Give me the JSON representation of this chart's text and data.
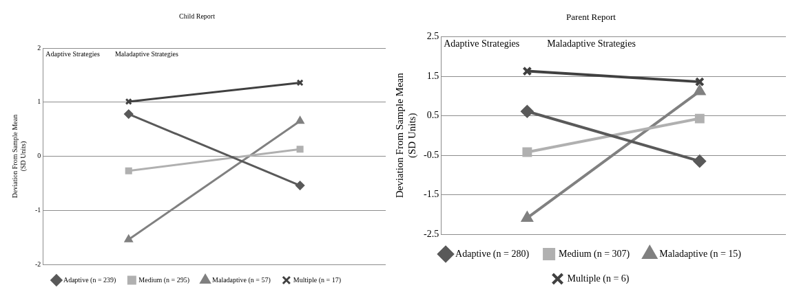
{
  "chart_data": [
    {
      "type": "line",
      "title": "Child Report",
      "ylabel": "Deviation From Sample Mean\n(SD Units)",
      "categories": [
        null,
        null
      ],
      "ylim": [
        -2,
        2
      ],
      "yticks": [
        -2,
        -1,
        0,
        1,
        2
      ],
      "grid": "y",
      "legend": "bottom",
      "tick_labels": "y",
      "annotations": [
        "Adaptive Strategies",
        "Maladaptive Strategies"
      ],
      "series": [
        {
          "name": "Adaptive (n = 239)",
          "color": "#595959",
          "marker": "diamond",
          "values": [
            0.78,
            -0.54
          ]
        },
        {
          "name": "Medium (n = 295)",
          "color": "#b0b0b0",
          "marker": "square",
          "values": [
            -0.27,
            0.13
          ]
        },
        {
          "name": "Maladaptive (n = 57)",
          "color": "#808080",
          "marker": "triangle",
          "values": [
            -1.54,
            0.65
          ]
        },
        {
          "name": "Multiple (n = 17)",
          "color": "#404040",
          "marker": "cross",
          "values": [
            1.01,
            1.36
          ]
        }
      ]
    },
    {
      "type": "line",
      "title": "Parent Report",
      "ylabel": "Deviation From Sample Mean\n(SD Units)",
      "categories": [
        null,
        null
      ],
      "ylim": [
        -2.5,
        2.5
      ],
      "yticks": [
        -2.5,
        -1.5,
        -0.5,
        0.5,
        1.5,
        2.5
      ],
      "grid": "y",
      "legend": "bottom",
      "tick_labels": "y",
      "annotations": [
        "Adaptive Strategies",
        "Maladaptive Strategies"
      ],
      "series": [
        {
          "name": "Adaptive (n = 280)",
          "color": "#595959",
          "marker": "diamond",
          "values": [
            0.61,
            -0.65
          ]
        },
        {
          "name": "Medium (n = 307)",
          "color": "#b0b0b0",
          "marker": "square",
          "values": [
            -0.42,
            0.43
          ]
        },
        {
          "name": "Maladaptive (n = 15)",
          "color": "#808080",
          "marker": "triangle",
          "values": [
            -2.09,
            1.12
          ]
        },
        {
          "name": "Multiple (n = 6)",
          "color": "#404040",
          "marker": "cross",
          "values": [
            1.63,
            1.36
          ]
        }
      ]
    }
  ]
}
